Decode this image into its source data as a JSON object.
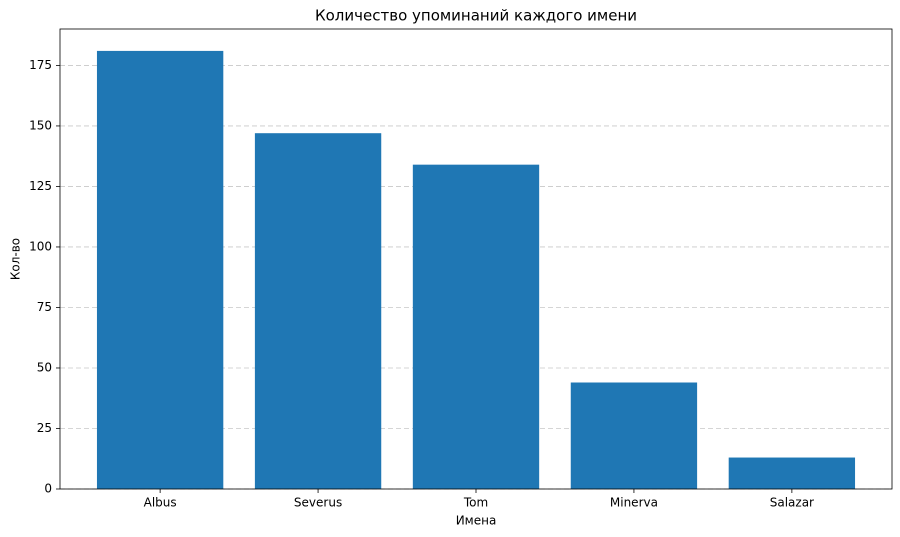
{
  "chart_data": {
    "type": "bar",
    "title": "Количество упоминаний каждого имени",
    "x_label": "Имена",
    "y_label": "Кол-во",
    "categories": [
      "Albus",
      "Severus",
      "Tom",
      "Minerva",
      "Salazar"
    ],
    "values": [
      181,
      147,
      134,
      44,
      13
    ],
    "color": "#1f77b4",
    "ylim": [
      0,
      190.05
    ],
    "yticks": [
      0,
      25,
      50,
      75,
      100,
      125,
      150,
      175
    ],
    "grid": true
  }
}
